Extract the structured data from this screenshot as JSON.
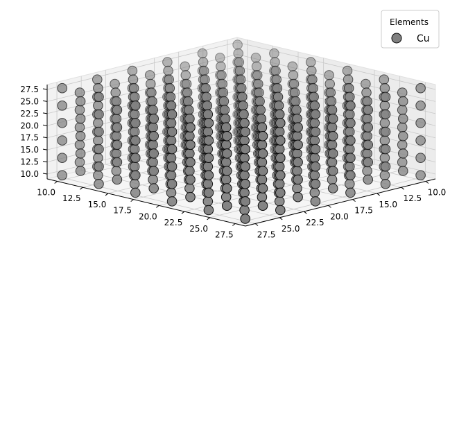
{
  "chart_data": {
    "type": "scatter3d",
    "title": "",
    "xlabel": "",
    "ylabel": "",
    "zlabel": "",
    "xlim": [
      9,
      28.5
    ],
    "ylim": [
      9,
      28.5
    ],
    "zlim": [
      9,
      28.5
    ],
    "ticks": [
      10.0,
      12.5,
      15.0,
      17.5,
      20.0,
      22.5,
      25.0,
      27.5
    ],
    "tick_labels": [
      "10.0",
      "12.5",
      "15.0",
      "17.5",
      "20.0",
      "22.5",
      "25.0",
      "27.5"
    ],
    "grid": true,
    "view": {
      "elev_deg": 30,
      "azim_deg": 45
    },
    "legend": {
      "title": "Elements",
      "position": "top-right"
    },
    "series": [
      {
        "name": "Cu",
        "color": "#808080",
        "edge_color": "#000000",
        "structure": "fcc lattice points",
        "lattice_constant": 3.6,
        "range_min": 10.0,
        "range_max": 28.0
      }
    ]
  }
}
